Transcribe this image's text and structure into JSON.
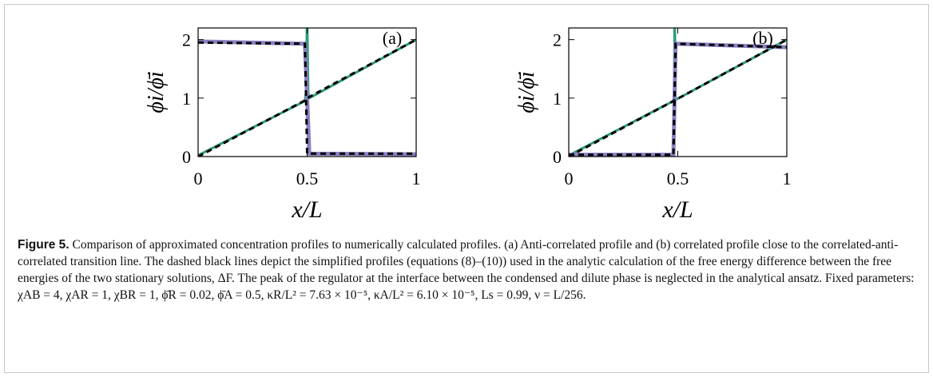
{
  "chart_data": [
    {
      "type": "line",
      "annotation": "(a)",
      "xlabel": "x/L",
      "ylabel": "ϕi/ϕ̄i",
      "xlim": [
        0,
        1
      ],
      "xticks": [
        0,
        0.5,
        1
      ],
      "ylim": [
        0,
        2.2
      ],
      "yticks": [
        0,
        1,
        2
      ],
      "series": [
        {
          "color": "#2a9d78",
          "style": "solid",
          "x": [
            0,
            0.49,
            0.495,
            0.5,
            0.505,
            0.51,
            1
          ],
          "values": [
            0.02,
            0.95,
            1.1,
            2.5,
            1.1,
            1.0,
            2.0
          ]
        },
        {
          "color": "#8a7fc0",
          "style": "solid",
          "x": [
            0,
            0.49,
            0.5,
            0.51,
            1
          ],
          "values": [
            1.97,
            1.93,
            1.0,
            0.05,
            0.04
          ]
        },
        {
          "color": "#000000",
          "style": "dashed",
          "x": [
            0,
            0.49,
            0.5,
            1
          ],
          "values": [
            0,
            0.96,
            1.0,
            2.0
          ]
        },
        {
          "color": "#000000",
          "style": "dashed",
          "x": [
            0,
            0.49,
            0.5,
            1
          ],
          "values": [
            1.95,
            1.93,
            0.05,
            0.05
          ]
        }
      ]
    },
    {
      "type": "line",
      "annotation": "(b)",
      "xlabel": "x/L",
      "ylabel": "ϕi/ϕ̄i",
      "xlim": [
        0,
        1
      ],
      "xticks": [
        0,
        0.5,
        1
      ],
      "ylim": [
        0,
        2.2
      ],
      "yticks": [
        0,
        1,
        2
      ],
      "series": [
        {
          "color": "#2a9d78",
          "style": "solid",
          "x": [
            0,
            0.48,
            0.483,
            0.486,
            0.49,
            1
          ],
          "values": [
            0.02,
            0.95,
            1.1,
            2.5,
            0.97,
            2.0
          ]
        },
        {
          "color": "#8a7fc0",
          "style": "solid",
          "x": [
            0,
            0.48,
            0.49,
            1
          ],
          "values": [
            0.03,
            0.03,
            1.93,
            1.87
          ]
        },
        {
          "color": "#000000",
          "style": "dashed",
          "x": [
            0,
            0.48,
            0.49,
            1
          ],
          "values": [
            0,
            0.95,
            0.97,
            2.0
          ]
        },
        {
          "color": "#000000",
          "style": "dashed",
          "x": [
            0,
            0.48,
            0.49,
            1
          ],
          "values": [
            0.03,
            0.03,
            1.93,
            1.87
          ]
        }
      ]
    }
  ],
  "caption": {
    "label": "Figure 5.",
    "text": "Comparison of approximated concentration profiles to numerically calculated profiles. (a) Anti-correlated profile and (b) correlated profile close to the correlated-anti-correlated transition line. The dashed black lines depict the simplified profiles (equations (8)–(10)) used in the analytic calculation of the free energy difference between the free energies of the two stationary solutions, ΔF. The peak of the regulator at the interface between the condensed and dilute phase is neglected in the analytical ansatz. Fixed parameters: χAB = 4, χAR = 1, χBR = 1, ϕ̄R = 0.02, ϕ̄A = 0.5, κR/L² = 7.63 × 10⁻⁵, κA/L² = 6.10 × 10⁻⁵, Ls = 0.99, ν = L/256."
  }
}
